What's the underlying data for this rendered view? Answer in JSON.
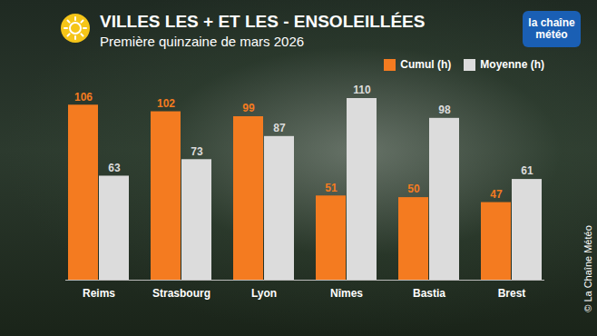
{
  "chart_data": {
    "type": "bar",
    "title": "VILLES LES + ET LES - ENSOLEILLÉES",
    "subtitle": "Première quinzaine de mars 2026",
    "annotations": [
      "la chaîne météo",
      "© La Chaîne Météo"
    ],
    "categories": [
      "Reims",
      "Strasbourg",
      "Lyon",
      "Nîmes",
      "Bastia",
      "Brest"
    ],
    "series": [
      {
        "name": "Cumul (h)",
        "color": "#f47b20",
        "values": [
          106,
          102,
          99,
          51,
          50,
          47
        ]
      },
      {
        "name": "Moyenne (h)",
        "color": "#dcdcdc",
        "values": [
          63,
          73,
          87,
          110,
          98,
          61
        ]
      }
    ],
    "ylim": [
      0,
      110
    ],
    "grid": false,
    "legend": "top-right",
    "data_labels": true,
    "tick_labels": "x"
  }
}
